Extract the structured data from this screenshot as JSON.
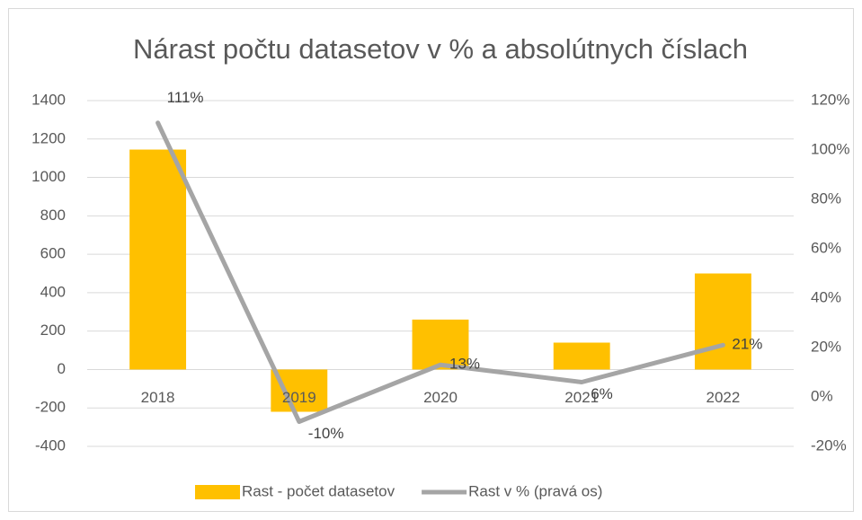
{
  "chart_data": {
    "type": "bar-line",
    "title": "Nárast počtu datasetov v % a absolútnych číslach",
    "categories": [
      "2018",
      "2019",
      "2020",
      "2021",
      "2022"
    ],
    "series": [
      {
        "name": "Rast - počet datasetov",
        "type": "bar",
        "color": "#ffc000",
        "axis": "y",
        "values": [
          1145,
          -220,
          260,
          140,
          500
        ]
      },
      {
        "name": "Rast v % (pravá os)",
        "type": "line",
        "color": "#a5a5a5",
        "axis": "y2",
        "values": [
          111,
          -10,
          13,
          6,
          21
        ],
        "value_labels": [
          "111%",
          "-10%",
          "13%",
          "6%",
          "21%"
        ]
      }
    ],
    "ylim": [
      -400,
      1400
    ],
    "yticks": [
      -400,
      -200,
      0,
      200,
      400,
      600,
      800,
      1000,
      1200,
      1400
    ],
    "y2lim": [
      -20,
      120
    ],
    "y2ticks": [
      {
        "value": -20,
        "label": "-20%"
      },
      {
        "value": 0,
        "label": "0%"
      },
      {
        "value": 20,
        "label": "20%"
      },
      {
        "value": 40,
        "label": "40%"
      },
      {
        "value": 60,
        "label": "60%"
      },
      {
        "value": 80,
        "label": "80%"
      },
      {
        "value": 100,
        "label": "100%"
      },
      {
        "value": 120,
        "label": "120%"
      }
    ],
    "grid": true,
    "legend": "bottom"
  }
}
